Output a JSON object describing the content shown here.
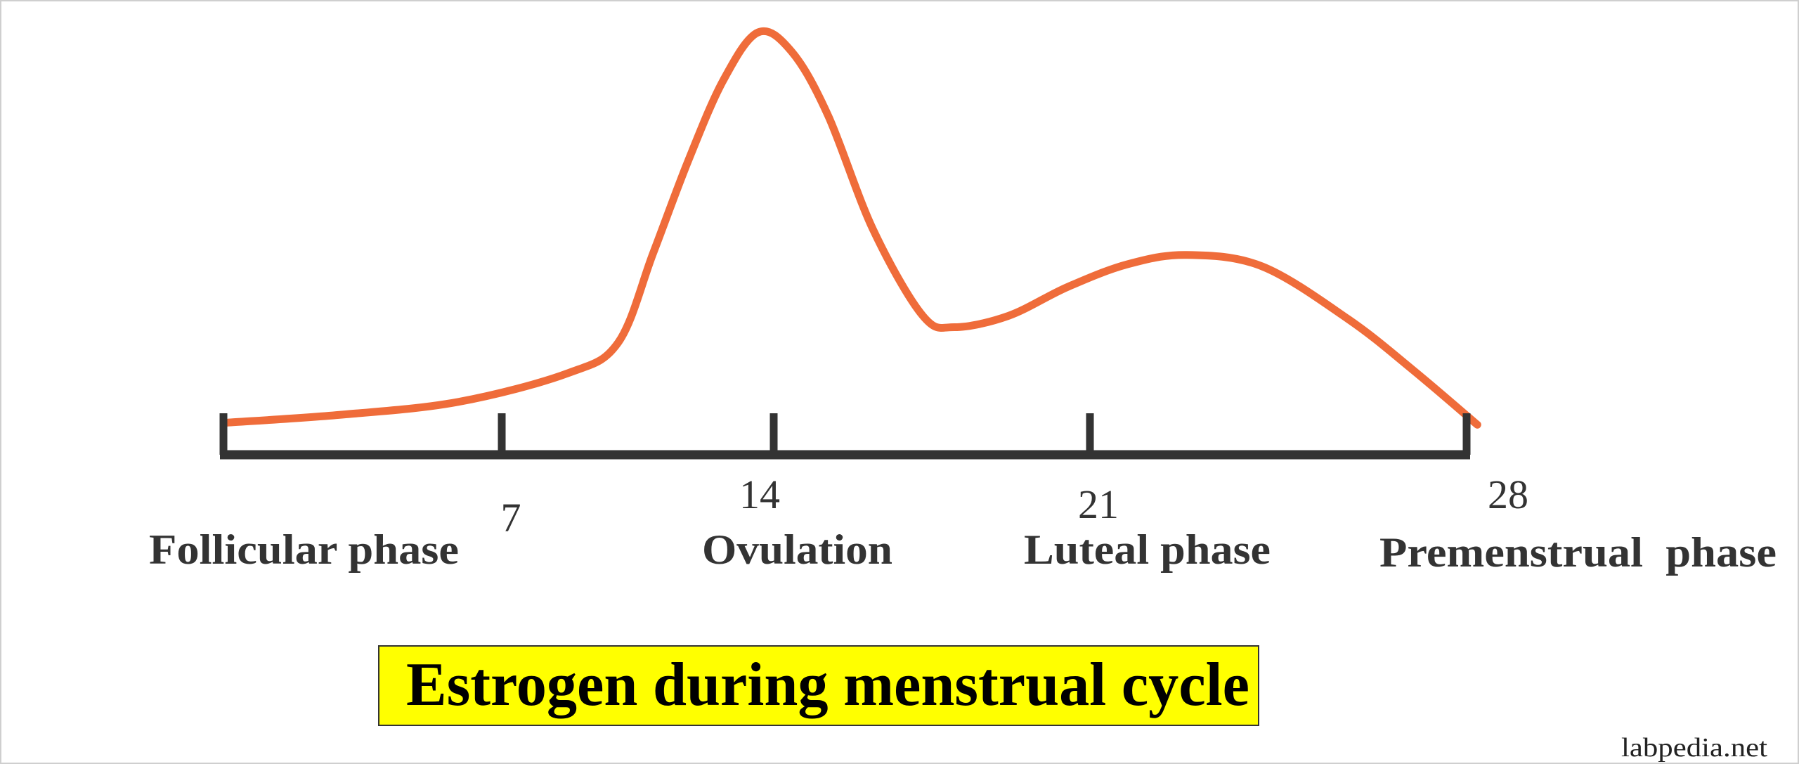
{
  "chart_data": {
    "type": "line",
    "title": "Estrogen during menstrual cycle",
    "xlabel": "",
    "ylabel": "",
    "xlim": [
      0,
      28
    ],
    "grid": false,
    "legend": "none",
    "x_ticks": [
      0,
      7,
      14,
      21,
      28
    ],
    "x_tick_labels": [
      "",
      "7",
      "14",
      "21",
      "28"
    ],
    "phase_labels": [
      "Follicular phase",
      "Ovulation",
      "Luteal phase",
      "Premenstrual  phase"
    ],
    "series": [
      {
        "color": "#ef6c3a",
        "x": [
          0.1,
          3.0,
          5.9,
          8.7,
          10.0,
          10.9,
          11.8,
          12.7,
          13.6,
          14.4,
          15.2,
          16.2,
          17.3,
          18.0,
          19.2,
          20.5,
          21.7,
          22.8,
          24.2,
          25.8,
          27.0,
          28.2
        ],
        "y": [
          7.6,
          9.5,
          12.5,
          19.3,
          26.6,
          47.8,
          69.6,
          88.6,
          100,
          95.4,
          80.4,
          53.3,
          32.9,
          30.2,
          32.9,
          39.7,
          45.1,
          47.3,
          44.6,
          32.1,
          20.1,
          7.1
        ]
      }
    ],
    "title_box_color": "#ffff00",
    "axis_color": "#333333"
  },
  "watermark": "labpedia.net"
}
